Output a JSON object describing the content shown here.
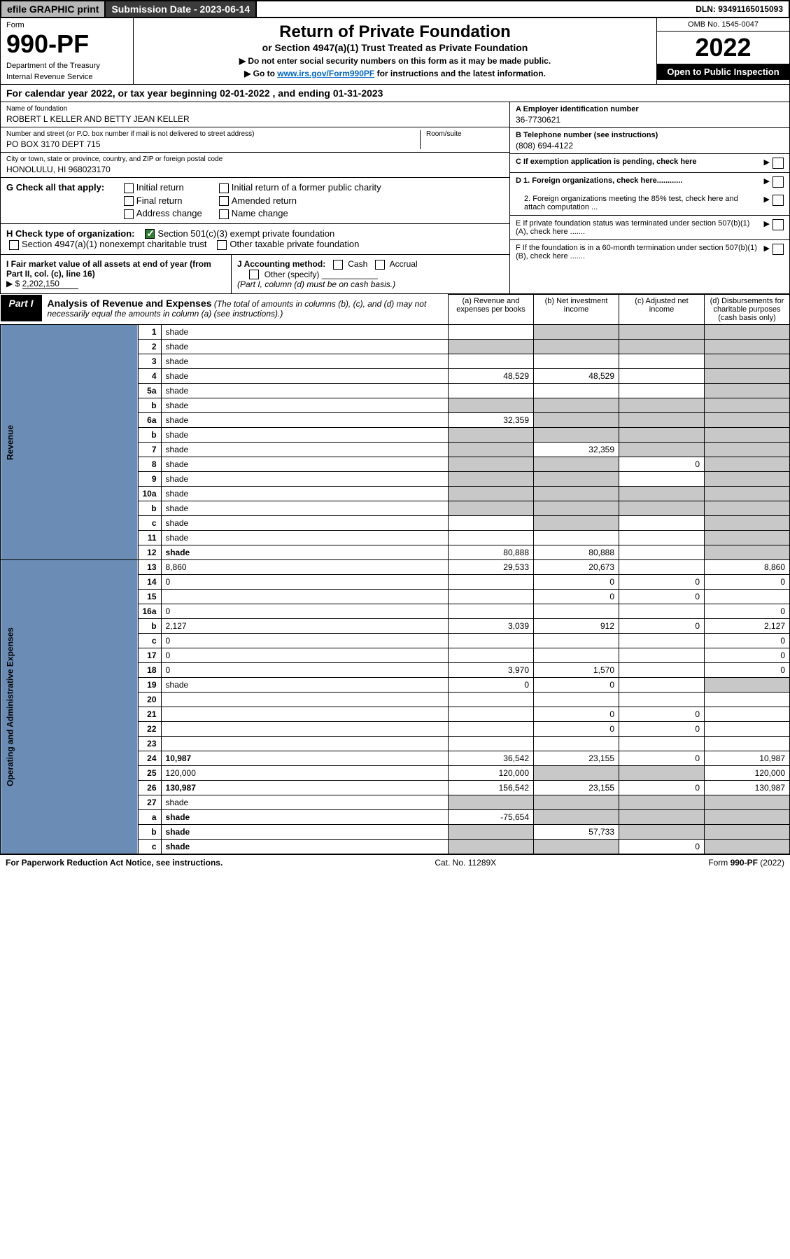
{
  "top": {
    "efile": "efile GRAPHIC print",
    "submission": "Submission Date - 2023-06-14",
    "dln": "DLN: 93491165015093"
  },
  "header": {
    "form_label": "Form",
    "form_number": "990-PF",
    "dept": "Department of the Treasury",
    "irs": "Internal Revenue Service",
    "title": "Return of Private Foundation",
    "subtitle": "or Section 4947(a)(1) Trust Treated as Private Foundation",
    "note1": "▶ Do not enter social security numbers on this form as it may be made public.",
    "note2_pre": "▶ Go to ",
    "note2_link": "www.irs.gov/Form990PF",
    "note2_post": " for instructions and the latest information.",
    "omb": "OMB No. 1545-0047",
    "year": "2022",
    "open": "Open to Public Inspection"
  },
  "calyear": "For calendar year 2022, or tax year beginning 02-01-2022          , and ending 01-31-2023",
  "info": {
    "name_lbl": "Name of foundation",
    "name": "ROBERT L KELLER AND BETTY JEAN KELLER",
    "addr_lbl": "Number and street (or P.O. box number if mail is not delivered to street address)",
    "addr": "PO BOX 3170 DEPT 715",
    "room_lbl": "Room/suite",
    "city_lbl": "City or town, state or province, country, and ZIP or foreign postal code",
    "city": "HONOLULU, HI  968023170",
    "a_lbl": "A Employer identification number",
    "a_val": "36-7730621",
    "b_lbl": "B Telephone number (see instructions)",
    "b_val": "(808) 694-4122",
    "c_lbl": "C If exemption application is pending, check here",
    "d1": "D 1. Foreign organizations, check here............",
    "d2": "2. Foreign organizations meeting the 85% test, check here and attach computation ...",
    "e": "E  If private foundation status was terminated under section 507(b)(1)(A), check here .......",
    "f": "F  If the foundation is in a 60-month termination under section 507(b)(1)(B), check here .......",
    "g_lbl": "G Check all that apply:",
    "g_opts": [
      "Initial return",
      "Initial return of a former public charity",
      "Final return",
      "Amended return",
      "Address change",
      "Name change"
    ],
    "h_lbl": "H Check type of organization:",
    "h1": "Section 501(c)(3) exempt private foundation",
    "h2": "Section 4947(a)(1) nonexempt charitable trust",
    "h3": "Other taxable private foundation",
    "i_lbl": "I Fair market value of all assets at end of year (from Part II, col. (c), line 16)",
    "i_val": "2,202,150",
    "j_lbl": "J Accounting method:",
    "j_cash": "Cash",
    "j_accrual": "Accrual",
    "j_other": "Other (specify)",
    "j_note": "(Part I, column (d) must be on cash basis.)"
  },
  "part1": {
    "label": "Part I",
    "title": "Analysis of Revenue and Expenses",
    "note": "(The total of amounts in columns (b), (c), and (d) may not necessarily equal the amounts in column (a) (see instructions).)",
    "col_a": "(a)   Revenue and expenses per books",
    "col_b": "(b)   Net investment income",
    "col_c": "(c)   Adjusted net income",
    "col_d": "(d)  Disbursements for charitable purposes (cash basis only)"
  },
  "side": {
    "rev": "Revenue",
    "exp": "Operating and Administrative Expenses"
  },
  "rows": [
    {
      "n": "1",
      "d": "shade",
      "a": "",
      "b": "shade",
      "c": "shade"
    },
    {
      "n": "2",
      "d": "shade",
      "a": "shade",
      "b": "shade",
      "c": "shade"
    },
    {
      "n": "3",
      "d": "shade",
      "a": "",
      "b": "",
      "c": ""
    },
    {
      "n": "4",
      "d": "shade",
      "a": "48,529",
      "b": "48,529",
      "c": ""
    },
    {
      "n": "5a",
      "d": "shade",
      "a": "",
      "b": "",
      "c": ""
    },
    {
      "n": "b",
      "d": "shade",
      "a": "shade",
      "b": "shade",
      "c": "shade"
    },
    {
      "n": "6a",
      "d": "shade",
      "a": "32,359",
      "b": "shade",
      "c": "shade"
    },
    {
      "n": "b",
      "d": "shade",
      "a": "shade",
      "b": "shade",
      "c": "shade"
    },
    {
      "n": "7",
      "d": "shade",
      "a": "shade",
      "b": "32,359",
      "c": "shade"
    },
    {
      "n": "8",
      "d": "shade",
      "a": "shade",
      "b": "shade",
      "c": "0"
    },
    {
      "n": "9",
      "d": "shade",
      "a": "shade",
      "b": "shade",
      "c": ""
    },
    {
      "n": "10a",
      "d": "shade",
      "a": "shade",
      "b": "shade",
      "c": "shade"
    },
    {
      "n": "b",
      "d": "shade",
      "a": "shade",
      "b": "shade",
      "c": "shade"
    },
    {
      "n": "c",
      "d": "shade",
      "a": "",
      "b": "shade",
      "c": ""
    },
    {
      "n": "11",
      "d": "shade",
      "a": "",
      "b": "",
      "c": ""
    },
    {
      "n": "12",
      "d": "shade",
      "bold": true,
      "a": "80,888",
      "b": "80,888",
      "c": ""
    },
    {
      "n": "13",
      "d": "8,860",
      "a": "29,533",
      "b": "20,673",
      "c": ""
    },
    {
      "n": "14",
      "d": "0",
      "a": "",
      "b": "0",
      "c": "0"
    },
    {
      "n": "15",
      "d": "",
      "a": "",
      "b": "0",
      "c": "0"
    },
    {
      "n": "16a",
      "d": "0",
      "a": "",
      "b": "",
      "c": ""
    },
    {
      "n": "b",
      "d": "2,127",
      "a": "3,039",
      "b": "912",
      "c": "0"
    },
    {
      "n": "c",
      "d": "0",
      "a": "",
      "b": "",
      "c": ""
    },
    {
      "n": "17",
      "d": "0",
      "a": "",
      "b": "",
      "c": ""
    },
    {
      "n": "18",
      "d": "0",
      "a": "3,970",
      "b": "1,570",
      "c": ""
    },
    {
      "n": "19",
      "d": "shade",
      "a": "0",
      "b": "0",
      "c": ""
    },
    {
      "n": "20",
      "d": "",
      "a": "",
      "b": "",
      "c": ""
    },
    {
      "n": "21",
      "d": "",
      "a": "",
      "b": "0",
      "c": "0"
    },
    {
      "n": "22",
      "d": "",
      "a": "",
      "b": "0",
      "c": "0"
    },
    {
      "n": "23",
      "d": "",
      "a": "",
      "b": "",
      "c": ""
    },
    {
      "n": "24",
      "d": "10,987",
      "bold": true,
      "a": "36,542",
      "b": "23,155",
      "c": "0"
    },
    {
      "n": "25",
      "d": "120,000",
      "a": "120,000",
      "b": "shade",
      "c": "shade"
    },
    {
      "n": "26",
      "d": "130,987",
      "bold": true,
      "a": "156,542",
      "b": "23,155",
      "c": "0"
    },
    {
      "n": "27",
      "d": "shade",
      "a": "shade",
      "b": "shade",
      "c": "shade"
    },
    {
      "n": "a",
      "d": "shade",
      "bold": true,
      "a": "-75,654",
      "b": "shade",
      "c": "shade"
    },
    {
      "n": "b",
      "d": "shade",
      "bold": true,
      "a": "shade",
      "b": "57,733",
      "c": "shade"
    },
    {
      "n": "c",
      "d": "shade",
      "bold": true,
      "a": "shade",
      "b": "shade",
      "c": "0"
    }
  ],
  "footer": {
    "left": "For Paperwork Reduction Act Notice, see instructions.",
    "mid": "Cat. No. 11289X",
    "right": "Form 990-PF (2022)"
  }
}
